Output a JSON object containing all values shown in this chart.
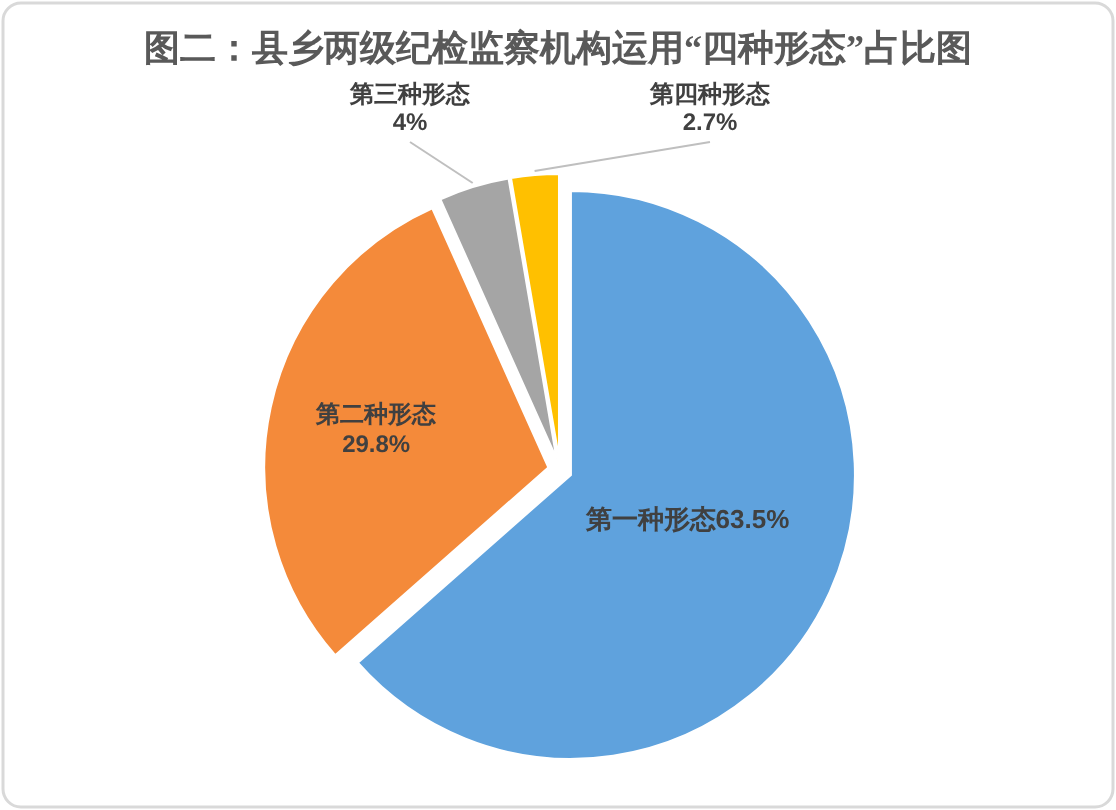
{
  "chart_data": {
    "type": "pie",
    "title": "图二：县乡两级纪检监察机构运用“四种形态”占比图",
    "categories": [
      "第一种形态",
      "第二种形态",
      "第三种形态",
      "第四种形态"
    ],
    "values": [
      63.5,
      29.8,
      4,
      2.7
    ],
    "colors": [
      "#5fa2dd",
      "#f48a3a",
      "#a5a5a5",
      "#ffc000"
    ],
    "value_labels": [
      "63.5%",
      "29.8%",
      "4%",
      "2.7%"
    ]
  }
}
